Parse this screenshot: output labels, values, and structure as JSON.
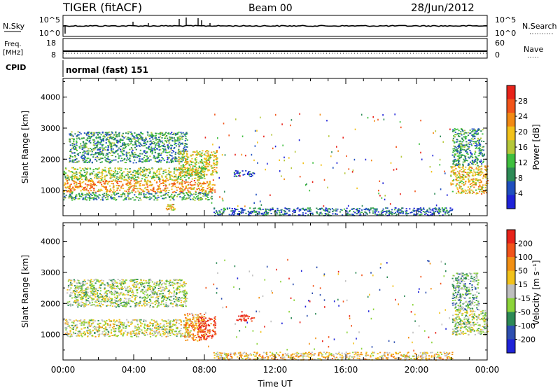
{
  "header": {
    "station": "TIGER (fitACF)",
    "beam": "Beam 00",
    "date": "28/Jun/2012"
  },
  "strips": {
    "nsky_label": "N.Sky",
    "nsky_ticks": [
      "10^5",
      "10^0"
    ],
    "nsearch_label": "N.Search",
    "nsearch_ticks": [
      "10^5",
      "10^0"
    ],
    "freq_label_1": "Freq.",
    "freq_label_2": "[MHz]",
    "freq_ticks": [
      "18",
      "8"
    ],
    "nave_label": "Nave",
    "nave_ticks": [
      "60",
      "0"
    ],
    "cpid_label": "CPID",
    "cpid_value": "normal (fast) 151"
  },
  "colors": {
    "power": [
      "#1f23d8",
      "#1f4fbf",
      "#2d8a56",
      "#3fbf3f",
      "#b6c83a",
      "#f2c21b",
      "#f28a14",
      "#f2541a",
      "#e8231a"
    ],
    "velocity": [
      "#1f23d8",
      "#2d4fb0",
      "#2d8a56",
      "#8cd43a",
      "#bfbfbf",
      "#f2c21b",
      "#f29014",
      "#f2541a",
      "#e8231a"
    ]
  },
  "chart_data": [
    {
      "type": "heatmap",
      "panel": "power",
      "ylabel": "Slant Range [km]",
      "ylim": [
        180,
        4600
      ],
      "yticks": [
        "1000",
        "2000",
        "3000",
        "4000"
      ],
      "xlim": [
        0,
        24
      ],
      "colorbar_label": "Power [dB]",
      "colorbar_ticks": [
        "28",
        "24",
        "20",
        "16",
        "12",
        "8",
        "4"
      ],
      "colorbar_range": [
        0,
        32
      ],
      "regions": [
        {
          "t0": 0.0,
          "t1": 8.6,
          "r0": 950,
          "r1": 1350,
          "level": 0.7
        },
        {
          "t0": 0.0,
          "t1": 8.0,
          "r0": 1350,
          "r1": 1750,
          "level": 0.45
        },
        {
          "t0": 0.0,
          "t1": 8.4,
          "r0": 700,
          "r1": 950,
          "level": 0.35
        },
        {
          "t0": 0.3,
          "t1": 7.0,
          "r0": 1900,
          "r1": 2900,
          "level": 0.3
        },
        {
          "t0": 6.5,
          "t1": 8.7,
          "r0": 1500,
          "r1": 2300,
          "level": 0.55
        },
        {
          "t0": 5.8,
          "t1": 6.3,
          "r0": 380,
          "r1": 560,
          "level": 0.6
        },
        {
          "t0": 9.6,
          "t1": 10.8,
          "r0": 1450,
          "r1": 1650,
          "level": 0.15
        },
        {
          "t0": 8.5,
          "t1": 22.0,
          "r0": 200,
          "r1": 450,
          "level": 0.2
        },
        {
          "t0": 21.9,
          "t1": 24.0,
          "r0": 900,
          "r1": 1800,
          "level": 0.6
        },
        {
          "t0": 22.0,
          "t1": 23.8,
          "r0": 1800,
          "r1": 3000,
          "level": 0.3
        }
      ]
    },
    {
      "type": "heatmap",
      "panel": "velocity",
      "ylabel": "Slant Range [km]",
      "ylim": [
        180,
        4600
      ],
      "yticks": [
        "1000",
        "2000",
        "3000",
        "4000"
      ],
      "xlabel": "Time UT",
      "xticks": [
        "00:00",
        "04:00",
        "08:00",
        "12:00",
        "16:00",
        "20:00",
        "00:00"
      ],
      "xlim": [
        0,
        24
      ],
      "colorbar_label": "Velocity [m s⁻¹]",
      "colorbar_ticks": [
        "200",
        "100",
        "50",
        "15",
        "-15",
        "-50",
        "-100",
        "-200"
      ],
      "colorbar_range": [
        -250,
        250
      ],
      "regions": [
        {
          "t0": 0.0,
          "t1": 7.2,
          "r0": 950,
          "r1": 1500,
          "level": 0.5
        },
        {
          "t0": 6.8,
          "t1": 8.0,
          "r0": 800,
          "r1": 1700,
          "level": 0.7
        },
        {
          "t0": 7.6,
          "t1": 8.6,
          "r0": 900,
          "r1": 1600,
          "level": 0.9
        },
        {
          "t0": 0.2,
          "t1": 7.0,
          "r0": 1900,
          "r1": 2800,
          "level": 0.45
        },
        {
          "t0": 9.8,
          "t1": 10.8,
          "r0": 1450,
          "r1": 1650,
          "level": 0.9
        },
        {
          "t0": 8.5,
          "t1": 22.0,
          "r0": 200,
          "r1": 450,
          "level": 0.6
        },
        {
          "t0": 22.0,
          "t1": 24.0,
          "r0": 1000,
          "r1": 1800,
          "level": 0.45
        },
        {
          "t0": 22.0,
          "t1": 23.5,
          "r0": 1800,
          "r1": 3000,
          "level": 0.35
        }
      ]
    }
  ]
}
